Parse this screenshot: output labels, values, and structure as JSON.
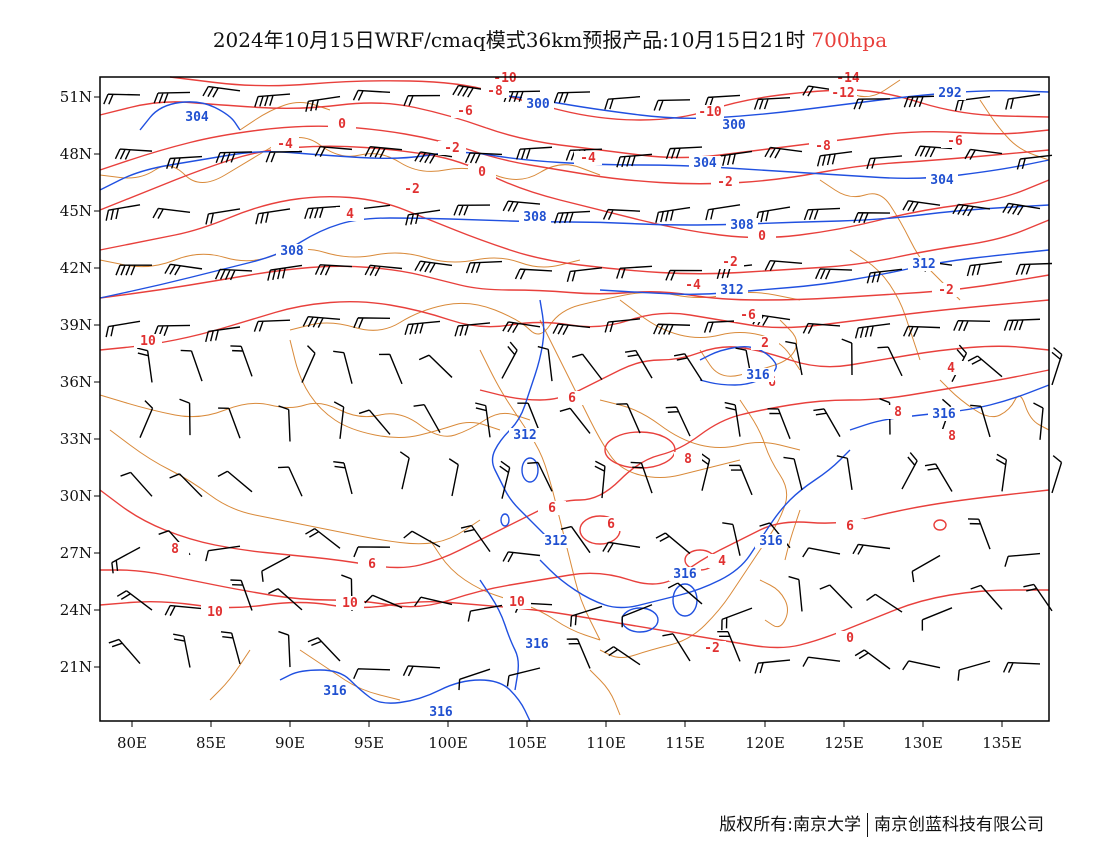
{
  "title": {
    "text": "2024年10月15日WRF/cmaq模式36km预报产品:10月15日21时",
    "level": "700hpa"
  },
  "axes": {
    "lon_ticks": [
      "80E",
      "85E",
      "90E",
      "95E",
      "100E",
      "105E",
      "110E",
      "115E",
      "120E",
      "125E",
      "130E",
      "135E"
    ],
    "lat_ticks": [
      "51N",
      "48N",
      "45N",
      "42N",
      "39N",
      "36N",
      "33N",
      "30N",
      "27N",
      "24N",
      "21N"
    ]
  },
  "colors": {
    "temperature": "#e8403c",
    "height": "#2050e0",
    "boundary": "#d98a3a",
    "wind": "#000000"
  },
  "temperature_labels": [
    "-10",
    "-8",
    "-6",
    "-14",
    "-12",
    "-10",
    "-8",
    "-6",
    "-4",
    "-2",
    "0",
    "-2",
    "-4",
    "-6",
    "-4",
    "-2",
    "0",
    "-2",
    "0",
    "2",
    "4",
    "6",
    "6",
    "8",
    "8",
    "8",
    "6",
    "6",
    "6",
    "4",
    "6",
    "8",
    "10",
    "10",
    "10",
    "10",
    "-2",
    "0",
    "-2",
    "4"
  ],
  "height_labels": [
    "304",
    "300",
    "300",
    "292",
    "304",
    "304",
    "308",
    "308",
    "308",
    "312",
    "312",
    "316",
    "316",
    "312",
    "312",
    "316",
    "316",
    "316",
    "316",
    "316"
  ],
  "footer": {
    "left": "版权所有:南京大学",
    "right": "南京创蓝科技有限公司"
  }
}
